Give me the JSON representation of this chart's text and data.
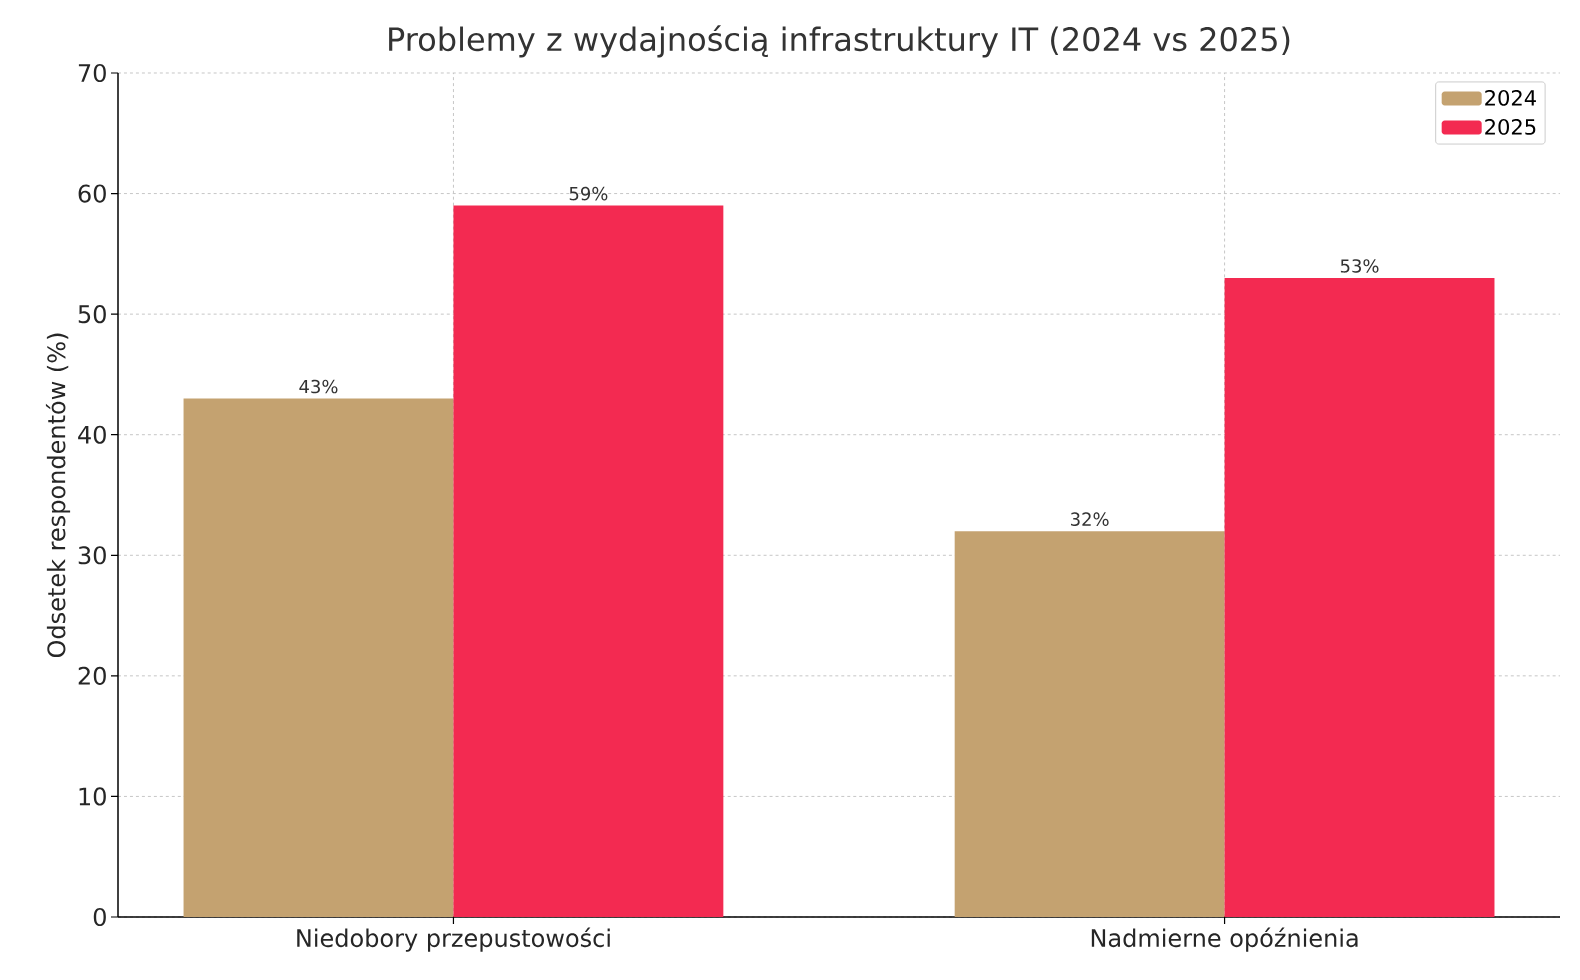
{
  "chart_data": {
    "type": "bar",
    "title": "Problemy z wydajnością infrastruktury IT (2024 vs 2025)",
    "ylabel": "Odsetek respondentów (%)",
    "categories": [
      "Niedobory przepustowości",
      "Nadmierne opóźnienia"
    ],
    "series": [
      {
        "name": "2024",
        "color": "#c4a270",
        "values": [
          43,
          32
        ],
        "value_labels": [
          "43%",
          "32%"
        ]
      },
      {
        "name": "2025",
        "color": "#f32a51",
        "values": [
          59,
          53
        ],
        "value_labels": [
          "59%",
          "53%"
        ]
      }
    ],
    "ylim": [
      0,
      70
    ],
    "yticks": [
      0,
      10,
      20,
      30,
      40,
      50,
      60,
      70
    ],
    "grid": true,
    "legend": "top right"
  }
}
